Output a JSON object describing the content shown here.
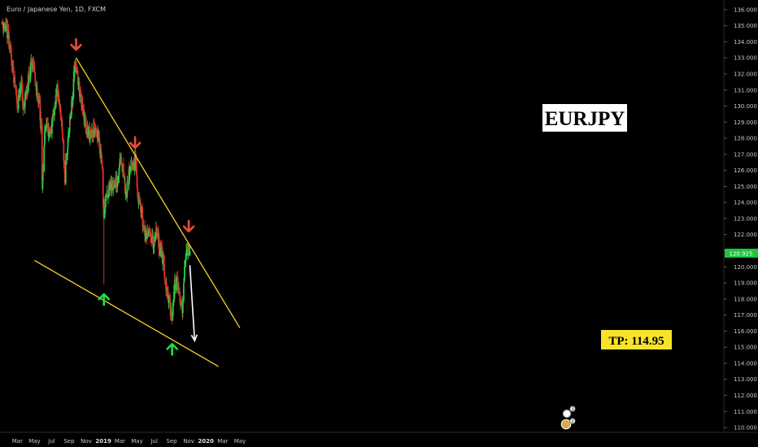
{
  "header": {
    "title": "Euro / Japanese Yen, 1D, FXCM"
  },
  "colors": {
    "background": "#000000",
    "up": "#26d04b",
    "down": "#e0302a",
    "trendline": "#f5d327",
    "price_badge": "#1fc43f",
    "arrow_down": "#ef4a3a",
    "arrow_up": "#1fe04a",
    "projection": "#ffffff",
    "tp_box": "#f7e32a"
  },
  "labels": {
    "symbol": "EURJPY",
    "tp": "TP: 114.95",
    "current_price": "120.925",
    "event_badge_1": "3",
    "event_badge_2": "2"
  },
  "chart_data": {
    "type": "candlestick",
    "title": "Euro / Japanese Yen, 1D, FXCM",
    "ylim": [
      109.7,
      136.6
    ],
    "y_ticks": [
      "136.000",
      "135.000",
      "134.000",
      "133.000",
      "132.000",
      "131.000",
      "130.000",
      "129.000",
      "128.000",
      "127.000",
      "126.000",
      "125.000",
      "124.000",
      "123.000",
      "122.000",
      "121.000",
      "120.000",
      "119.000",
      "118.000",
      "117.000",
      "116.000",
      "115.000",
      "114.000",
      "113.000",
      "112.000",
      "111.000",
      "110.000"
    ],
    "x_ticks": [
      {
        "label": "Mar",
        "bold": false
      },
      {
        "label": "May",
        "bold": false
      },
      {
        "label": "Jul",
        "bold": false
      },
      {
        "label": "Sep",
        "bold": false
      },
      {
        "label": "Nov",
        "bold": false
      },
      {
        "label": "2019",
        "bold": true
      },
      {
        "label": "Mar",
        "bold": false
      },
      {
        "label": "May",
        "bold": false
      },
      {
        "label": "Jul",
        "bold": false
      },
      {
        "label": "Sep",
        "bold": false
      },
      {
        "label": "Nov",
        "bold": false
      },
      {
        "label": "2020",
        "bold": true
      },
      {
        "label": "Mar",
        "bold": false
      },
      {
        "label": "May",
        "bold": false
      }
    ],
    "price_path": [
      [
        "2018-01-05",
        135.2
      ],
      [
        "2018-01-26",
        134.6
      ],
      [
        "2018-02-06",
        133.2
      ],
      [
        "2018-02-16",
        131.9
      ],
      [
        "2018-03-02",
        130.1
      ],
      [
        "2018-03-16",
        131.2
      ],
      [
        "2018-03-23",
        129.8
      ],
      [
        "2018-04-06",
        131.3
      ],
      [
        "2018-04-20",
        132.6
      ],
      [
        "2018-04-27",
        132.7
      ],
      [
        "2018-05-04",
        131.3
      ],
      [
        "2018-05-18",
        130.3
      ],
      [
        "2018-05-25",
        128.4
      ],
      [
        "2018-05-29",
        124.9
      ],
      [
        "2018-06-08",
        128.9
      ],
      [
        "2018-06-22",
        128.2
      ],
      [
        "2018-07-06",
        129.2
      ],
      [
        "2018-07-20",
        131.2
      ],
      [
        "2018-08-03",
        129.3
      ],
      [
        "2018-08-10",
        127.6
      ],
      [
        "2018-08-17",
        125.6
      ],
      [
        "2018-08-31",
        128.6
      ],
      [
        "2018-09-14",
        130.6
      ],
      [
        "2018-09-21",
        132.8
      ],
      [
        "2018-09-26",
        132.6
      ],
      [
        "2018-10-05",
        131.3
      ],
      [
        "2018-10-19",
        129.7
      ],
      [
        "2018-11-02",
        128.5
      ],
      [
        "2018-11-16",
        128.2
      ],
      [
        "2018-11-30",
        128.8
      ],
      [
        "2018-12-14",
        128.1
      ],
      [
        "2018-12-28",
        126.3
      ],
      [
        "2019-01-03",
        122.9
      ],
      [
        "2019-01-11",
        124.6
      ],
      [
        "2019-01-25",
        124.9
      ],
      [
        "2019-02-08",
        125.2
      ],
      [
        "2019-02-22",
        125.3
      ],
      [
        "2019-03-01",
        126.7
      ],
      [
        "2019-03-15",
        125.9
      ],
      [
        "2019-03-22",
        124.3
      ],
      [
        "2019-04-05",
        126.1
      ],
      [
        "2019-04-19",
        126.1
      ],
      [
        "2019-04-24",
        126.9
      ],
      [
        "2019-05-03",
        124.7
      ],
      [
        "2019-05-17",
        123.3
      ],
      [
        "2019-05-31",
        121.9
      ],
      [
        "2019-06-14",
        122.1
      ],
      [
        "2019-06-28",
        121.6
      ],
      [
        "2019-07-12",
        122.4
      ],
      [
        "2019-07-19",
        121.1
      ],
      [
        "2019-08-02",
        120.5
      ],
      [
        "2019-08-16",
        118.2
      ],
      [
        "2019-08-23",
        117.8
      ],
      [
        "2019-09-03",
        116.8
      ],
      [
        "2019-09-13",
        119.0
      ],
      [
        "2019-09-27",
        118.9
      ],
      [
        "2019-10-04",
        117.6
      ],
      [
        "2019-10-11",
        117.4
      ],
      [
        "2019-10-18",
        120.4
      ],
      [
        "2019-10-25",
        121.0
      ],
      [
        "2019-10-31",
        121.1
      ],
      [
        "2019-11-05",
        120.9
      ]
    ],
    "annotations": {
      "symbol_label": "EURJPY",
      "take_profit": "TP: 114.95",
      "current_price": "120.925",
      "upper_trendline": [
        [
          "2018-09-26",
          133.0
        ],
        [
          "2020-05-01",
          116.2
        ]
      ],
      "lower_trendline": [
        [
          "2018-05-01",
          120.4
        ],
        [
          "2020-02-15",
          113.8
        ]
      ],
      "resistance_touches": [
        [
          "2018-09-26",
          133.0
        ],
        [
          "2019-04-24",
          126.9
        ],
        [
          "2019-11-01",
          121.7
        ]
      ],
      "support_touches": [
        [
          "2019-01-03",
          118.9
        ],
        [
          "2019-09-03",
          115.8
        ]
      ],
      "projection": [
        [
          "2019-11-05",
          120.1
        ],
        [
          "2019-11-22",
          115.4
        ]
      ],
      "events": [
        "3",
        "2"
      ]
    }
  }
}
